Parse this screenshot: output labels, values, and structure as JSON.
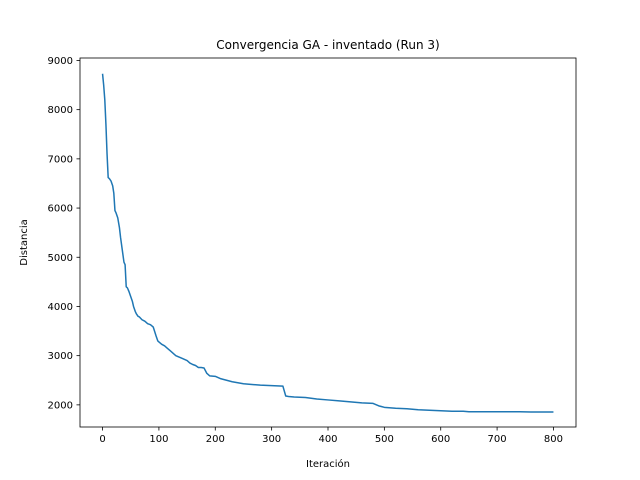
{
  "chart_data": {
    "type": "line",
    "title": "Convergencia GA - inventado (Run 3)",
    "xlabel": "Iteración",
    "ylabel": "Distancia",
    "xlim": [
      -40,
      840
    ],
    "ylim": [
      1550,
      9050
    ],
    "xticks": [
      0,
      100,
      200,
      300,
      400,
      500,
      600,
      700,
      800
    ],
    "yticks": [
      2000,
      3000,
      4000,
      5000,
      6000,
      7000,
      8000,
      9000
    ],
    "grid": false,
    "series": [
      {
        "color": "#1f77b4",
        "x": [
          0,
          2,
          4,
          6,
          8,
          10,
          12,
          15,
          18,
          20,
          22,
          24,
          27,
          30,
          32,
          35,
          38,
          40,
          42,
          44,
          47,
          50,
          53,
          55,
          58,
          60,
          63,
          65,
          70,
          75,
          80,
          85,
          90,
          95,
          98,
          100,
          105,
          110,
          115,
          120,
          125,
          130,
          140,
          150,
          155,
          160,
          165,
          170,
          175,
          180,
          185,
          190,
          200,
          210,
          220,
          230,
          240,
          250,
          260,
          280,
          300,
          320,
          325,
          330,
          340,
          360,
          380,
          400,
          420,
          440,
          460,
          480,
          490,
          500,
          520,
          540,
          560,
          580,
          600,
          620,
          640,
          650,
          680,
          700,
          720,
          740,
          760,
          780,
          800
        ],
        "y": [
          8730,
          8500,
          8200,
          7700,
          7100,
          6620,
          6600,
          6550,
          6450,
          6300,
          5950,
          5900,
          5800,
          5600,
          5400,
          5150,
          4900,
          4850,
          4400,
          4380,
          4300,
          4200,
          4100,
          4000,
          3900,
          3850,
          3800,
          3790,
          3730,
          3700,
          3650,
          3630,
          3580,
          3400,
          3300,
          3280,
          3230,
          3200,
          3150,
          3100,
          3050,
          3000,
          2950,
          2900,
          2850,
          2820,
          2800,
          2760,
          2760,
          2750,
          2640,
          2590,
          2580,
          2530,
          2500,
          2470,
          2450,
          2430,
          2420,
          2400,
          2390,
          2380,
          2180,
          2170,
          2160,
          2150,
          2120,
          2100,
          2080,
          2060,
          2040,
          2030,
          1980,
          1950,
          1930,
          1920,
          1900,
          1890,
          1880,
          1870,
          1870,
          1860,
          1860,
          1860,
          1860,
          1860,
          1855,
          1855,
          1855
        ]
      }
    ]
  }
}
